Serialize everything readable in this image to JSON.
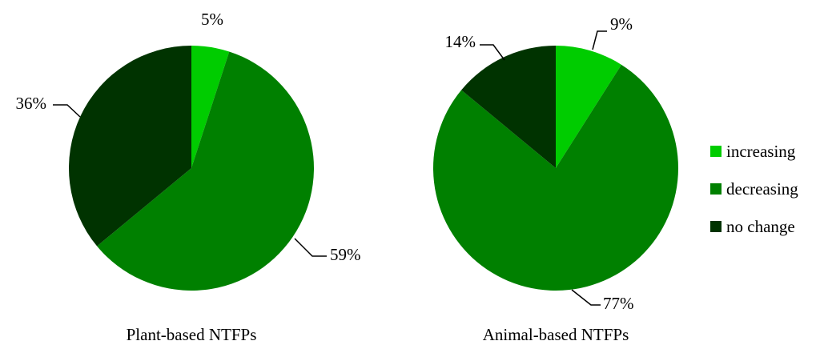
{
  "chart_data": [
    {
      "type": "pie",
      "title": "Plant-based NTFPs",
      "categories": [
        "increasing",
        "decreasing",
        "no change"
      ],
      "values": [
        5,
        59,
        36
      ],
      "labels": [
        "5%",
        "59%",
        "36%"
      ]
    },
    {
      "type": "pie",
      "title": "Animal-based NTFPs",
      "categories": [
        "increasing",
        "decreasing",
        "no change"
      ],
      "values": [
        9,
        77,
        14
      ],
      "labels": [
        "9%",
        "77%",
        "14%"
      ]
    }
  ],
  "legend": {
    "placement": "right",
    "items": [
      {
        "label": "increasing",
        "color": "#00cc00"
      },
      {
        "label": "decreasing",
        "color": "#008000"
      },
      {
        "label": "no change",
        "color": "#003300"
      }
    ]
  }
}
